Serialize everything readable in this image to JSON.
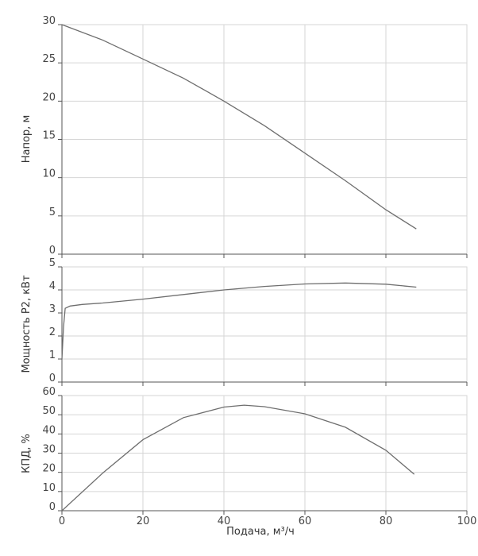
{
  "chart_data": [
    {
      "type": "line",
      "ylabel": "Напор, м",
      "xlim": [
        0,
        100
      ],
      "ylim": [
        0,
        30
      ],
      "x_ticks": [
        0,
        20,
        40,
        60,
        80,
        100
      ],
      "y_ticks": [
        0,
        5,
        10,
        15,
        20,
        25,
        30
      ],
      "grid": true,
      "series": [
        {
          "x": [
            0,
            10,
            20,
            30,
            40,
            50,
            60,
            70,
            80,
            87.5
          ],
          "y": [
            30,
            28.0,
            25.5,
            23.0,
            20.0,
            16.8,
            13.2,
            9.6,
            5.8,
            3.3
          ]
        }
      ]
    },
    {
      "type": "line",
      "ylabel": "Мощность P2, кВт",
      "xlim": [
        0,
        100
      ],
      "ylim": [
        0,
        5
      ],
      "y_ticks": [
        0,
        1,
        2,
        3,
        4,
        5
      ],
      "grid": true,
      "series": [
        {
          "x": [
            0,
            0.4,
            0.8,
            2,
            5,
            10,
            20,
            30,
            40,
            50,
            60,
            70,
            80,
            87.5
          ],
          "y": [
            1.0,
            2.4,
            3.2,
            3.3,
            3.37,
            3.43,
            3.6,
            3.8,
            4.0,
            4.15,
            4.26,
            4.3,
            4.25,
            4.12
          ]
        }
      ]
    },
    {
      "type": "line",
      "ylabel": "КПД, %",
      "xlabel": "Подача, м³/ч",
      "xlim": [
        0,
        100
      ],
      "ylim": [
        0,
        60
      ],
      "x_ticks": [
        0,
        20,
        40,
        60,
        80,
        100
      ],
      "y_ticks": [
        0,
        10,
        20,
        30,
        40,
        50,
        60
      ],
      "grid": true,
      "series": [
        {
          "x": [
            0,
            10,
            20,
            30,
            40,
            45,
            50,
            60,
            70,
            80,
            87
          ],
          "y": [
            0,
            19.5,
            37.0,
            48.5,
            54.0,
            55.0,
            54.2,
            50.5,
            43.5,
            31.5,
            19.0
          ]
        }
      ]
    }
  ]
}
